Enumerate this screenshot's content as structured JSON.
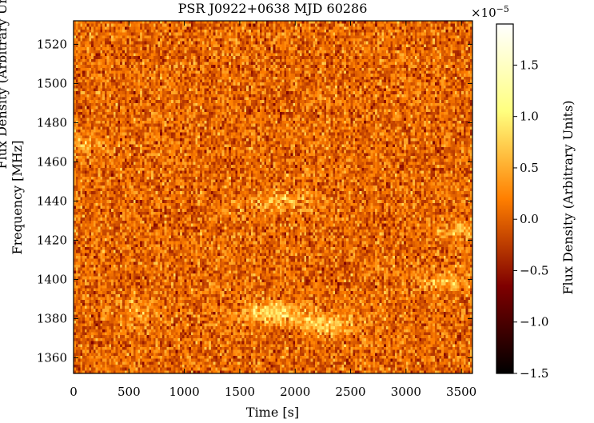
{
  "chart_data": {
    "type": "heatmap",
    "title": "PSR J0922+0638 MJD 60286",
    "xlabel": "Time [s]",
    "ylabel": "Frequency [MHz]",
    "ylabel_partial": "Flux Density (Arbitrary Units)",
    "xlim": [
      0,
      3600
    ],
    "ylim": [
      1352,
      1532
    ],
    "xticks": [
      0,
      500,
      1000,
      1500,
      2000,
      2500,
      3000,
      3500
    ],
    "yticks": [
      1360,
      1380,
      1400,
      1420,
      1440,
      1460,
      1480,
      1500,
      1520
    ],
    "colorbar": {
      "label": "Flux Density (Arbitrary Units)",
      "range": [
        -1.5,
        1.9
      ],
      "ticks": [
        -1.5,
        -1.0,
        -0.5,
        0.0,
        0.5,
        1.0,
        1.5
      ],
      "tick_labels": [
        "−1.5",
        "−1.0",
        "−0.5",
        "0.0",
        "0.5",
        "1.0",
        "1.5"
      ],
      "multiplier": "×10",
      "multiplier_exponent": "−5",
      "colormap": "afmhot"
    },
    "grid_resolution": {
      "time_bins": 180,
      "freq_bins": 120
    },
    "bright_features": [
      {
        "t": 1800,
        "f": 1383,
        "amp": 1.0
      },
      {
        "t": 2300,
        "f": 1377,
        "amp": 0.8
      },
      {
        "t": 1850,
        "f": 1440,
        "amp": 0.55
      },
      {
        "t": 3350,
        "f": 1399,
        "amp": 0.5
      },
      {
        "t": 100,
        "f": 1470,
        "amp": 0.4
      },
      {
        "t": 3500,
        "f": 1425,
        "amp": 0.4
      },
      {
        "t": 600,
        "f": 1385,
        "amp": 0.35
      }
    ]
  }
}
